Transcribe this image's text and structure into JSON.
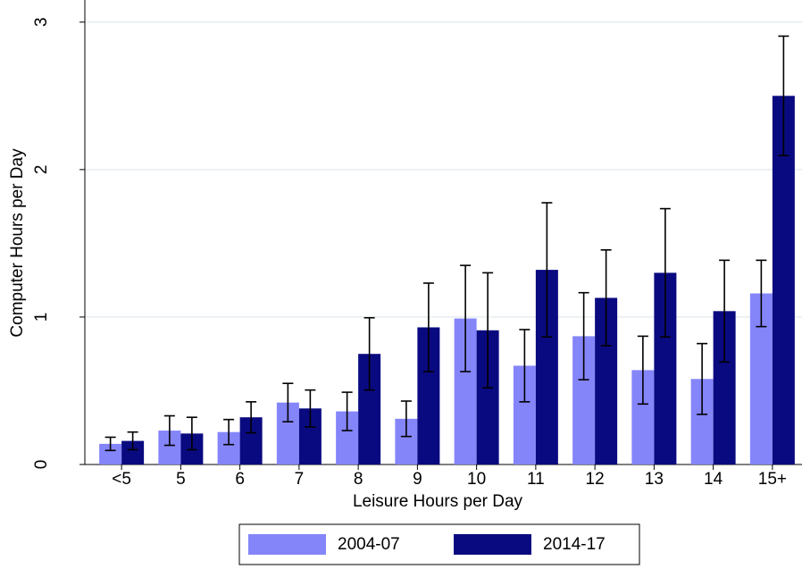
{
  "chart_data": {
    "type": "bar",
    "x_label": "Leisure Hours per Day",
    "y_label": "Computer Hours per Day",
    "categories": [
      "<5",
      "5",
      "6",
      "7",
      "8",
      "9",
      "10",
      "11",
      "12",
      "13",
      "14",
      "15+"
    ],
    "series": [
      {
        "name": "2004-07",
        "color": "#8585fa",
        "values": [
          0.14,
          0.23,
          0.22,
          0.42,
          0.36,
          0.31,
          0.99,
          0.67,
          0.87,
          0.64,
          0.58,
          1.16
        ],
        "errors": [
          0.045,
          0.1,
          0.085,
          0.13,
          0.13,
          0.12,
          0.36,
          0.245,
          0.295,
          0.23,
          0.24,
          0.225
        ]
      },
      {
        "name": "2014-17",
        "color": "#0a0a80",
        "values": [
          0.16,
          0.21,
          0.32,
          0.38,
          0.75,
          0.93,
          0.91,
          1.32,
          1.13,
          1.3,
          1.04,
          2.5
        ],
        "errors": [
          0.06,
          0.11,
          0.105,
          0.125,
          0.245,
          0.3,
          0.39,
          0.455,
          0.325,
          0.435,
          0.345,
          0.405
        ]
      }
    ],
    "ylim": [
      0,
      3.15
    ],
    "yticks": [
      0,
      1,
      2,
      3
    ],
    "grid": true
  }
}
